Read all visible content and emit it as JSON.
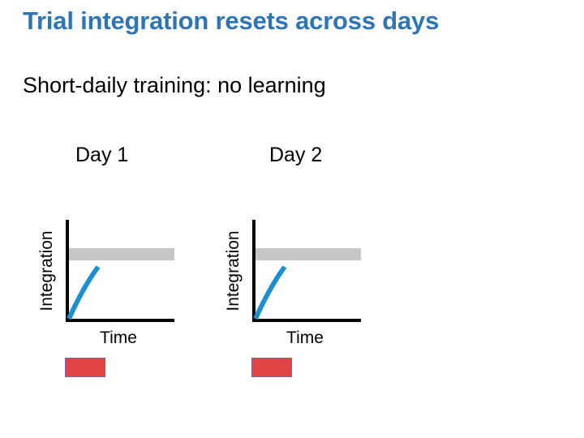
{
  "slide": {
    "title": "Trial integration resets across days",
    "subtitle": "Short-daily training: no learning",
    "colors": {
      "title": "#2e75b6",
      "curve": "#1b8fd0",
      "threshold": "#c6c6c6",
      "stimulus_fill": "#e04444",
      "stimulus_border": "#8a5aa0"
    }
  },
  "panels": [
    {
      "day_label": "Day 1",
      "y_axis_label": "Integration",
      "x_axis_label": "Time"
    },
    {
      "day_label": "Day 2",
      "y_axis_label": "Integration",
      "x_axis_label": "Time"
    }
  ]
}
